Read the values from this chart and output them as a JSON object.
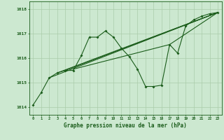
{
  "background_color": "#cce8d0",
  "grid_color": "#aaccaa",
  "line_color": "#1a5c1a",
  "xlabel": "Graphe pression niveau de la mer (hPa)",
  "ylim": [
    1013.7,
    1018.3
  ],
  "xlim": [
    -0.5,
    23.5
  ],
  "yticks": [
    1014,
    1015,
    1016,
    1017,
    1018
  ],
  "xticks": [
    0,
    1,
    2,
    3,
    4,
    5,
    6,
    7,
    8,
    9,
    10,
    11,
    12,
    13,
    14,
    15,
    16,
    17,
    18,
    19,
    20,
    21,
    22,
    23
  ],
  "series": [
    [
      0,
      1014.1
    ],
    [
      1,
      1014.6
    ],
    [
      2,
      1015.2
    ],
    [
      3,
      1015.4
    ],
    [
      4,
      1015.5
    ],
    [
      5,
      1015.5
    ],
    [
      6,
      1016.1
    ],
    [
      7,
      1016.85
    ],
    [
      8,
      1016.85
    ],
    [
      9,
      1017.1
    ],
    [
      10,
      1016.85
    ],
    [
      11,
      1016.4
    ],
    [
      12,
      1016.05
    ],
    [
      13,
      1015.55
    ],
    [
      14,
      1014.85
    ],
    [
      15,
      1014.85
    ],
    [
      16,
      1014.9
    ],
    [
      17,
      1016.55
    ],
    [
      18,
      1016.2
    ],
    [
      19,
      1017.3
    ],
    [
      20,
      1017.55
    ],
    [
      21,
      1017.7
    ],
    [
      22,
      1017.8
    ],
    [
      23,
      1017.85
    ]
  ],
  "trend_lines": [
    [
      [
        2,
        1015.2
      ],
      [
        23,
        1017.85
      ]
    ],
    [
      [
        3,
        1015.4
      ],
      [
        23,
        1017.85
      ]
    ],
    [
      [
        4,
        1015.5
      ],
      [
        23,
        1017.85
      ]
    ],
    [
      [
        5,
        1015.55
      ],
      [
        17,
        1016.55
      ],
      [
        23,
        1017.85
      ]
    ]
  ]
}
